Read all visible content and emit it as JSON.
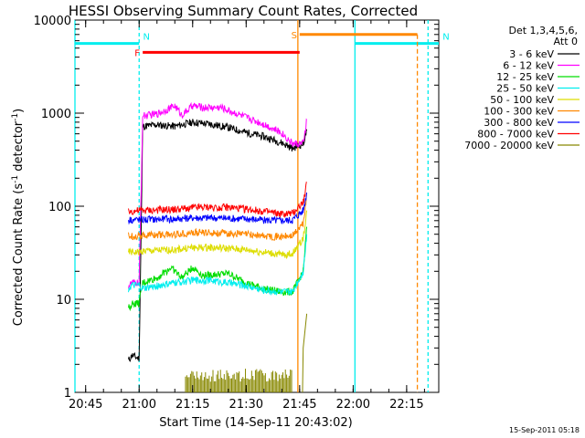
{
  "chart_data": {
    "type": "line",
    "title": "HESSI Observing Summary Count Rates, Corrected",
    "xlabel": "Start Time (14-Sep-11 20:43:02)",
    "ylabel_main": "Corrected Count Rate (s",
    "ylabel_exp1": "-1",
    "ylabel_mid": " detector",
    "ylabel_exp2": "-1",
    "ylabel_end": ")",
    "y_scale": "log",
    "ylim": [
      1,
      10000
    ],
    "xlim_minutes": [
      -3.0,
      99.0
    ],
    "x_ticks": [
      {
        "label": "20:45",
        "t": 0
      },
      {
        "label": "21:00",
        "t": 15
      },
      {
        "label": "21:15",
        "t": 30
      },
      {
        "label": "21:30",
        "t": 45
      },
      {
        "label": "21:45",
        "t": 60
      },
      {
        "label": "22:00",
        "t": 75
      },
      {
        "label": "22:15",
        "t": 90
      }
    ],
    "y_ticks": [
      {
        "label": "1",
        "v": 1
      },
      {
        "label": "10",
        "v": 10
      },
      {
        "label": "100",
        "v": 100
      },
      {
        "label": "1000",
        "v": 1000
      },
      {
        "label": "10000",
        "v": 10000
      }
    ],
    "legend_header": [
      "Det 1,3,4,5,6,",
      "Att 0"
    ],
    "series": [
      {
        "name": "3 - 6 keV",
        "color": "#000000",
        "x": [
          12,
          13,
          15,
          16,
          20,
          25,
          30,
          35,
          40,
          45,
          50,
          55,
          58,
          61,
          62
        ],
        "y": [
          2.2,
          2.5,
          2.3,
          720,
          750,
          720,
          800,
          760,
          700,
          620,
          560,
          480,
          420,
          470,
          650
        ]
      },
      {
        "name": "6 - 12 keV",
        "color": "#ff00ff",
        "x": [
          12,
          13,
          15,
          16,
          20,
          25,
          27,
          30,
          33,
          38,
          45,
          50,
          55,
          58,
          61,
          62
        ],
        "y": [
          14,
          15,
          15,
          930,
          980,
          1200,
          950,
          1200,
          1150,
          1150,
          900,
          760,
          610,
          470,
          470,
          850
        ]
      },
      {
        "name": "12 - 25 keV",
        "color": "#00dd00",
        "x": [
          12,
          13,
          15,
          16,
          20,
          24,
          27,
          30,
          33,
          40,
          45,
          50,
          55,
          58,
          61,
          62
        ],
        "y": [
          8,
          9,
          9,
          15,
          17,
          22,
          17,
          22,
          18,
          19,
          15,
          13,
          12,
          12,
          20,
          60
        ]
      },
      {
        "name": "25 - 50 keV",
        "color": "#00eeee",
        "x": [
          12,
          13,
          15,
          16,
          25,
          30,
          35,
          40,
          45,
          50,
          55,
          58,
          61,
          62
        ],
        "y": [
          13,
          14,
          14,
          13,
          15,
          16,
          16,
          15,
          14,
          12.5,
          12,
          12,
          20,
          50
        ]
      },
      {
        "name": "50 - 100 keV",
        "color": "#dddd00",
        "x": [
          12,
          13,
          15,
          16,
          25,
          30,
          35,
          40,
          45,
          50,
          55,
          58,
          61,
          62
        ],
        "y": [
          32,
          32,
          32,
          33,
          34,
          36,
          36,
          35,
          34,
          32,
          30,
          31,
          45,
          90
        ]
      },
      {
        "name": "100 - 300 keV",
        "color": "#ff8800",
        "x": [
          12,
          13,
          15,
          16,
          25,
          30,
          35,
          40,
          45,
          50,
          55,
          58,
          61,
          62
        ],
        "y": [
          48,
          48,
          48,
          49,
          50,
          52,
          52,
          51,
          50,
          48,
          47,
          48,
          65,
          130
        ]
      },
      {
        "name": "300 - 800 keV",
        "color": "#0000ff",
        "x": [
          12,
          13,
          15,
          16,
          25,
          30,
          35,
          40,
          45,
          50,
          55,
          58,
          61,
          62
        ],
        "y": [
          72,
          72,
          72,
          72,
          73,
          75,
          75,
          74,
          73,
          71,
          70,
          71,
          90,
          140
        ]
      },
      {
        "name": "800 - 7000 keV",
        "color": "#ff0000",
        "x": [
          12,
          13,
          15,
          16,
          25,
          30,
          35,
          40,
          45,
          50,
          55,
          58,
          61,
          62
        ],
        "y": [
          88,
          88,
          90,
          90,
          92,
          96,
          98,
          97,
          93,
          88,
          82,
          84,
          110,
          180
        ]
      },
      {
        "name": "7000 - 20000 keV",
        "color": "#888800",
        "x": [
          28,
          30,
          32,
          35,
          38,
          40,
          42,
          45,
          48,
          50,
          55,
          58,
          61,
          62
        ],
        "y": [
          1.8,
          1.6,
          1.9,
          1.7,
          1.8,
          1.6,
          1.8,
          1.7,
          1.5,
          1.6,
          1.6,
          1.4,
          3.0,
          7.0
        ]
      }
    ],
    "flags": [
      {
        "letter": "N",
        "color": "#00eeee",
        "t_start": -3,
        "t_end": 15,
        "y": 5600,
        "dashed_at": 15
      },
      {
        "letter": "N",
        "color": "#00eeee",
        "t_start": 75.5,
        "t_end": 99,
        "y": 5600,
        "dashed_at": 96
      },
      {
        "letter": "F",
        "color": "#ff0000",
        "t_start": 16,
        "t_end": 60,
        "y": 4500,
        "label_side": "left"
      },
      {
        "letter": "S",
        "color": "#ff8800",
        "t_start": 60,
        "t_end": 93,
        "y": 7000,
        "label_side": "left",
        "dashed_at": 93
      }
    ],
    "vertical_lines": [
      {
        "t": -3,
        "color": "#00eeee"
      },
      {
        "t": 15,
        "color": "#00eeee",
        "dashed": true
      },
      {
        "t": 75.5,
        "color": "#00eeee"
      },
      {
        "t": 96,
        "color": "#00eeee",
        "dashed": true
      },
      {
        "t": 59.5,
        "color": "#ff8800"
      }
    ],
    "grid": false,
    "legend_position": "right"
  },
  "footer": {
    "stamp": "15-Sep-2011 05:18"
  }
}
